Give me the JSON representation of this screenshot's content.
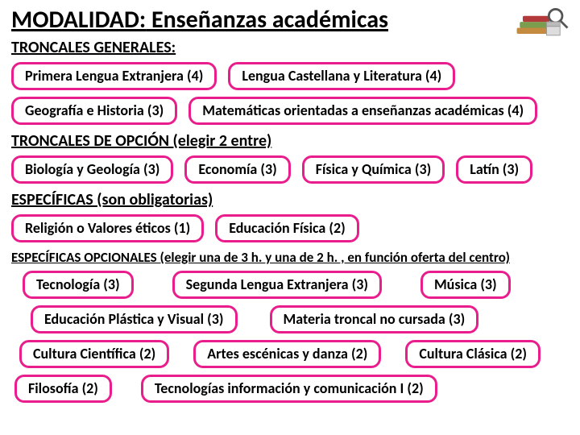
{
  "colors": {
    "pill_border": "#e91e8c",
    "pill_fill": "#ffffff",
    "text": "#000000",
    "bg": "#ffffff"
  },
  "title": {
    "prefix": "MODALIDAD:",
    "suffix": "Enseñanzas académicas"
  },
  "sections": [
    {
      "heading": "TRONCALES GENERALES:",
      "rows": [
        [
          "Primera Lengua Extranjera (4)",
          "Lengua Castellana y Literatura (4)"
        ],
        [
          "Geografía e Historia (3)",
          "Matemáticas orientadas a enseñanzas académicas  (4)"
        ]
      ]
    },
    {
      "heading": "TRONCALES DE OPCIÓN (elegir 2 entre)",
      "rows": [
        [
          "Biología y Geología  (3)",
          "Economía (3)",
          "Física y Química (3)",
          "Latín (3)"
        ]
      ]
    },
    {
      "heading": "ESPECÍFICAS (son obligatorias)",
      "rows": [
        [
          "Religión  o Valores éticos (1)",
          "Educación Física (2)"
        ]
      ]
    },
    {
      "heading": "ESPECÍFICAS OPCIONALES (elegir una de 3 h. y una de 2 h. , en función oferta del centro)",
      "heading_fontsize": 17,
      "rows": [
        [
          "Tecnología (3)",
          "Segunda Lengua Extranjera (3)",
          "Música (3)"
        ],
        [
          "Educación Plástica y Visual (3)",
          "Materia troncal no cursada (3)"
        ],
        [
          "Cultura Científica (2)",
          "Artes escénicas y danza (2)",
          "Cultura Clásica (2)"
        ],
        [
          "Filosofía (2)",
          "Tecnologías  información y comunicación I (2)"
        ]
      ],
      "row_gaps": [
        48,
        40,
        30,
        36
      ],
      "row_indents": [
        14,
        24,
        10,
        4
      ]
    }
  ]
}
